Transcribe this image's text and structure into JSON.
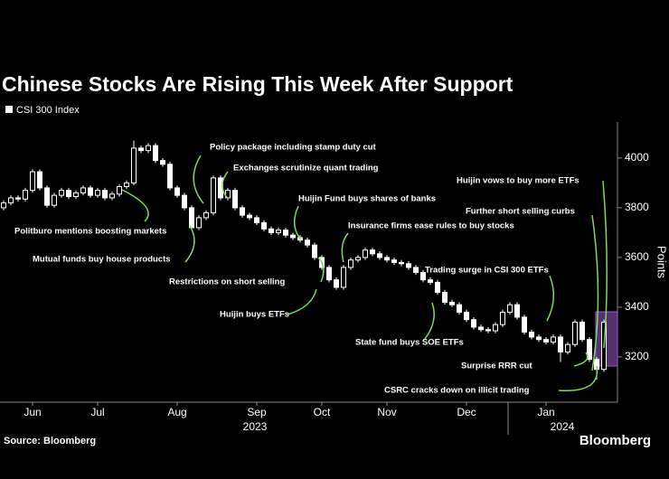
{
  "chart_data": {
    "type": "candlestick",
    "title": "Chinese Stocks Are Rising This Week After Support",
    "legend": "CSI 300 Index",
    "y_axis_label": "Points",
    "source": "Source: Bloomberg",
    "brand": "Bloomberg",
    "year_labels": [
      "2023",
      "2024"
    ],
    "categories": [
      null,
      null,
      null,
      null,
      "Jun",
      null,
      null,
      null,
      null,
      null,
      null,
      null,
      null,
      "Jul",
      null,
      null,
      null,
      null,
      null,
      null,
      null,
      null,
      null,
      null,
      "Aug",
      null,
      null,
      null,
      null,
      null,
      null,
      null,
      null,
      null,
      null,
      "Sep",
      null,
      null,
      null,
      null,
      null,
      null,
      null,
      null,
      "Oct",
      null,
      null,
      null,
      null,
      null,
      null,
      null,
      null,
      "Nov",
      null,
      null,
      null,
      null,
      null,
      null,
      null,
      null,
      null,
      null,
      "Dec",
      null,
      null,
      null,
      null,
      null,
      null,
      null,
      null,
      null,
      null,
      "Jan",
      null,
      null,
      null,
      null,
      null,
      null,
      null,
      null
    ],
    "open": [
      3800,
      3820,
      3840,
      3835,
      3870,
      3945,
      3880,
      3810,
      3850,
      3870,
      3845,
      3860,
      3880,
      3850,
      3870,
      3840,
      3855,
      3885,
      3900,
      4040,
      4030,
      4050,
      3990,
      3975,
      3880,
      3850,
      3800,
      3720,
      3760,
      3780,
      3920,
      3840,
      3870,
      3800,
      3770,
      3760,
      3740,
      3715,
      3700,
      3710,
      3690,
      3680,
      3670,
      3650,
      3600,
      3560,
      3510,
      3480,
      3560,
      3590,
      3600,
      3630,
      3615,
      3600,
      3590,
      3580,
      3575,
      3560,
      3540,
      3510,
      3500,
      3460,
      3420,
      3410,
      3380,
      3350,
      3320,
      3310,
      3305,
      3330,
      3380,
      3410,
      3360,
      3300,
      3280,
      3270,
      3260,
      3280,
      3220,
      3250,
      3340,
      3270,
      3190,
      3150
    ],
    "high": [
      3830,
      3850,
      3850,
      3880,
      3955,
      3955,
      3890,
      3860,
      3880,
      3880,
      3870,
      3890,
      3890,
      3880,
      3880,
      3865,
      3895,
      3910,
      4070,
      4050,
      4060,
      4060,
      4000,
      3985,
      3890,
      3860,
      3810,
      3770,
      3790,
      3930,
      3930,
      3880,
      3880,
      3810,
      3780,
      3770,
      3750,
      3725,
      3720,
      3720,
      3700,
      3690,
      3680,
      3660,
      3610,
      3570,
      3520,
      3570,
      3600,
      3610,
      3640,
      3640,
      3625,
      3610,
      3600,
      3590,
      3585,
      3570,
      3550,
      3520,
      3510,
      3470,
      3430,
      3420,
      3390,
      3360,
      3330,
      3320,
      3340,
      3390,
      3420,
      3420,
      3370,
      3310,
      3290,
      3280,
      3290,
      3290,
      3260,
      3350,
      3350,
      3280,
      3200,
      3350
    ],
    "low": [
      3790,
      3810,
      3825,
      3825,
      3860,
      3870,
      3800,
      3800,
      3840,
      3835,
      3835,
      3850,
      3840,
      3840,
      3830,
      3830,
      3845,
      3875,
      3890,
      4020,
      4020,
      3980,
      3965,
      3870,
      3840,
      3790,
      3710,
      3710,
      3750,
      3770,
      3830,
      3830,
      3790,
      3760,
      3750,
      3730,
      3705,
      3690,
      3690,
      3680,
      3670,
      3660,
      3640,
      3590,
      3550,
      3500,
      3470,
      3470,
      3550,
      3580,
      3590,
      3605,
      3590,
      3580,
      3570,
      3565,
      3550,
      3530,
      3500,
      3490,
      3450,
      3410,
      3400,
      3370,
      3340,
      3310,
      3300,
      3295,
      3295,
      3320,
      3370,
      3350,
      3290,
      3270,
      3260,
      3250,
      3250,
      3180,
      3210,
      3240,
      3260,
      3180,
      3110,
      3140
    ],
    "close": [
      3820,
      3840,
      3835,
      3870,
      3945,
      3880,
      3810,
      3850,
      3870,
      3845,
      3860,
      3880,
      3850,
      3870,
      3840,
      3855,
      3885,
      3900,
      4040,
      4030,
      4050,
      3990,
      3975,
      3880,
      3850,
      3800,
      3720,
      3760,
      3780,
      3920,
      3840,
      3870,
      3800,
      3770,
      3760,
      3740,
      3715,
      3700,
      3710,
      3690,
      3680,
      3670,
      3650,
      3600,
      3560,
      3510,
      3480,
      3560,
      3590,
      3600,
      3630,
      3615,
      3600,
      3590,
      3580,
      3575,
      3560,
      3540,
      3510,
      3500,
      3460,
      3420,
      3410,
      3380,
      3350,
      3320,
      3310,
      3305,
      3330,
      3380,
      3410,
      3360,
      3300,
      3280,
      3270,
      3260,
      3280,
      3220,
      3250,
      3340,
      3270,
      3190,
      3150,
      3340
    ],
    "color": "#ffffff",
    "highlight_color": "#9b59d0",
    "annotation_color": "#7ed957",
    "ylim": [
      3018,
      4145
    ],
    "yticks": [
      3200,
      3400,
      3600,
      3800,
      4000
    ],
    "grid": false,
    "annotations": [
      "Policy package including stamp duty cut",
      "Exchanges scrutinize quant trading",
      "Huijin vows to buy more ETFs",
      "Huijin Fund buys shares of banks",
      "Further short selling curbs",
      "Politburo mentions boosting markets",
      "Insurance firms ease rules to buy stocks",
      "Mutual funds buy house products",
      "Trading surge in CSI 300 ETFs",
      "Restrictions on short selling",
      "Huijin buys ETFs",
      "State fund buys SOE ETFs",
      "Surprise RRR cut",
      "CSRC cracks down on illicit trading"
    ]
  }
}
